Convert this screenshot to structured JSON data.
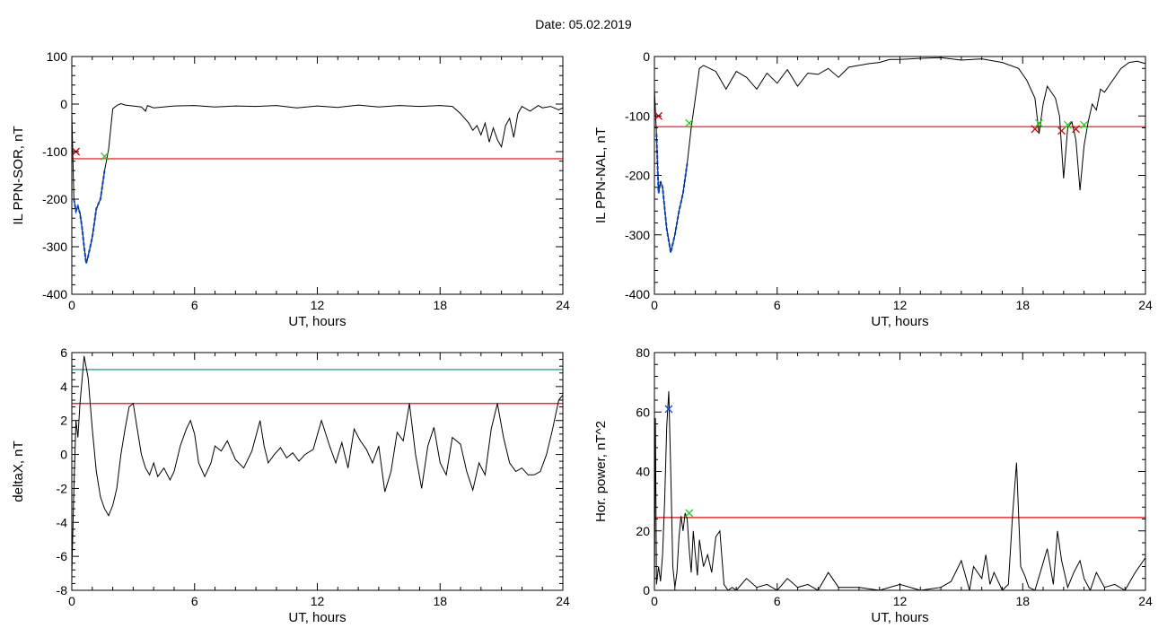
{
  "header": {
    "date_label": "Date:  05.02.2019"
  },
  "colors": {
    "trace": "#000000",
    "threshold": "#ff0000",
    "extra_line": "#008b8b",
    "highlight": "#0044cc",
    "marker_green": "#22cc22",
    "marker_red": "#cc0000"
  },
  "chart_data": [
    {
      "id": "ppn-sor",
      "type": "line",
      "ylabel": "IL PPN-SOR, nT",
      "xlabel": "UT, hours",
      "xlim": [
        0,
        24
      ],
      "ylim": [
        -400,
        100
      ],
      "xticks": [
        0,
        6,
        12,
        18,
        24
      ],
      "yticks": [
        -400,
        -300,
        -200,
        -100,
        0,
        100
      ],
      "threshold": -115,
      "series": [
        {
          "x": [
            0,
            0.1,
            0.2,
            0.3,
            0.4,
            0.5,
            0.6,
            0.7,
            0.8,
            0.9,
            1.0,
            1.1,
            1.2,
            1.4,
            1.6,
            1.8,
            2.0,
            2.2,
            2.4,
            2.6,
            3.0,
            3.4,
            3.6,
            3.7,
            4.0,
            5,
            6,
            7,
            8,
            9,
            10,
            11,
            12,
            13,
            14,
            15,
            16,
            17,
            18,
            18.6,
            19.0,
            19.4,
            19.6,
            19.8,
            20.0,
            20.2,
            20.4,
            20.6,
            20.8,
            21.0,
            21.2,
            21.4,
            21.6,
            21.8,
            22.0,
            22.4,
            22.8,
            23.0,
            23.4,
            23.8,
            24
          ],
          "y": [
            -20,
            -200,
            -225,
            -215,
            -230,
            -260,
            -300,
            -335,
            -320,
            -300,
            -280,
            -250,
            -220,
            -200,
            -140,
            -95,
            -10,
            -3,
            1,
            -2,
            -4,
            -6,
            -15,
            -3,
            -8,
            -4,
            -3,
            -6,
            -4,
            -5,
            -3,
            -8,
            -4,
            -7,
            -2,
            -6,
            -3,
            -5,
            -3,
            -5,
            -20,
            -40,
            -55,
            -45,
            -65,
            -40,
            -80,
            -50,
            -75,
            -90,
            -45,
            -30,
            -70,
            -20,
            -5,
            -15,
            -3,
            -8,
            -5,
            -12,
            -8
          ]
        }
      ],
      "highlight_range": [
        0.1,
        1.7
      ],
      "markers": [
        {
          "x": 0.2,
          "y": -100,
          "color": "red"
        },
        {
          "x": 1.6,
          "y": -110,
          "color": "green"
        }
      ]
    },
    {
      "id": "ppn-nal",
      "type": "line",
      "ylabel": "IL PPN-NAL, nT",
      "xlabel": "UT, hours",
      "xlim": [
        0,
        24
      ],
      "ylim": [
        -400,
        0
      ],
      "xticks": [
        0,
        6,
        12,
        18,
        24
      ],
      "yticks": [
        -400,
        -300,
        -200,
        -100,
        0
      ],
      "threshold": -118,
      "series": [
        {
          "x": [
            0,
            0.1,
            0.2,
            0.3,
            0.4,
            0.6,
            0.8,
            1.0,
            1.2,
            1.4,
            1.6,
            1.8,
            2.0,
            2.2,
            2.4,
            3,
            3.5,
            4,
            4.5,
            5,
            5.5,
            6,
            6.5,
            7,
            7.5,
            8,
            8.5,
            9,
            9.5,
            10,
            10.5,
            11,
            11.5,
            12,
            13,
            14,
            15,
            16,
            17,
            17.8,
            18.2,
            18.6,
            18.8,
            19.0,
            19.2,
            19.6,
            19.8,
            20.0,
            20.2,
            20.4,
            20.6,
            20.8,
            21.0,
            21.2,
            21.4,
            21.6,
            21.8,
            22,
            22.4,
            22.8,
            23.2,
            23.6,
            24
          ],
          "y": [
            -55,
            -130,
            -230,
            -210,
            -220,
            -290,
            -330,
            -300,
            -260,
            -230,
            -180,
            -120,
            -70,
            -20,
            -15,
            -25,
            -55,
            -25,
            -35,
            -55,
            -28,
            -45,
            -22,
            -50,
            -28,
            -30,
            -20,
            -35,
            -18,
            -15,
            -12,
            -10,
            -5,
            -5,
            -3,
            -2,
            -6,
            -4,
            -10,
            -20,
            -40,
            -70,
            -130,
            -80,
            -50,
            -70,
            -100,
            -205,
            -120,
            -110,
            -140,
            -225,
            -150,
            -110,
            -80,
            -90,
            -55,
            -60,
            -40,
            -20,
            -10,
            -8,
            -12
          ]
        }
      ],
      "highlight_range": [
        0.1,
        1.7
      ],
      "markers": [
        {
          "x": 0.2,
          "y": -100,
          "color": "red"
        },
        {
          "x": 1.7,
          "y": -112,
          "color": "green"
        },
        {
          "x": 18.6,
          "y": -122,
          "color": "red"
        },
        {
          "x": 18.8,
          "y": -112,
          "color": "green"
        },
        {
          "x": 19.9,
          "y": -125,
          "color": "red"
        },
        {
          "x": 20.2,
          "y": -115,
          "color": "green"
        },
        {
          "x": 20.6,
          "y": -122,
          "color": "red"
        },
        {
          "x": 21.0,
          "y": -115,
          "color": "green"
        }
      ]
    },
    {
      "id": "deltax",
      "type": "line",
      "ylabel": "deltaX, nT",
      "xlabel": "UT, hours",
      "xlim": [
        0,
        24
      ],
      "ylim": [
        -8,
        6
      ],
      "xticks": [
        0,
        6,
        12,
        18,
        24
      ],
      "yticks": [
        -8,
        -6,
        -4,
        -2,
        0,
        2,
        4,
        6
      ],
      "threshold": 3,
      "extra_line": 5,
      "series": [
        {
          "x": [
            0,
            0.1,
            0.2,
            0.3,
            0.4,
            0.6,
            0.8,
            1.0,
            1.2,
            1.4,
            1.6,
            1.8,
            2.0,
            2.2,
            2.4,
            2.6,
            2.8,
            3.0,
            3.2,
            3.4,
            3.6,
            3.8,
            4.0,
            4.2,
            4.5,
            4.8,
            5.0,
            5.3,
            5.6,
            5.8,
            6.0,
            6.2,
            6.5,
            6.8,
            7.0,
            7.3,
            7.6,
            8.0,
            8.4,
            8.8,
            9.2,
            9.4,
            9.6,
            9.9,
            10.2,
            10.5,
            10.8,
            11.1,
            11.4,
            11.8,
            12.2,
            12.6,
            12.9,
            13.2,
            13.5,
            13.8,
            14.1,
            14.4,
            14.7,
            15.0,
            15.3,
            15.6,
            15.9,
            16.2,
            16.5,
            16.8,
            17.1,
            17.4,
            17.7,
            18.0,
            18.3,
            18.6,
            19.0,
            19.3,
            19.6,
            19.9,
            20.2,
            20.5,
            20.8,
            21.1,
            21.4,
            21.7,
            22.0,
            22.3,
            22.6,
            22.9,
            23.2,
            23.5,
            23.8,
            24
          ],
          "y": [
            -7,
            -2,
            2,
            1,
            3,
            5.8,
            4.5,
            1.5,
            -1,
            -2.5,
            -3.2,
            -3.6,
            -3,
            -2,
            0,
            1.5,
            2.8,
            3,
            1.5,
            0,
            -0.8,
            -1.2,
            -0.5,
            -1.3,
            -0.8,
            -1.5,
            -1,
            0.5,
            1.5,
            2,
            1.2,
            -0.5,
            -1.3,
            -0.5,
            0.5,
            0.2,
            0.8,
            -0.3,
            -0.8,
            0.2,
            2,
            0.5,
            -0.5,
            0,
            0.4,
            -0.2,
            0.1,
            -0.4,
            0,
            0.3,
            2,
            0.5,
            -0.5,
            0.7,
            -0.8,
            1.5,
            0.8,
            0.3,
            -0.5,
            0.5,
            -2.2,
            -1,
            1.3,
            0.8,
            3,
            0,
            -2,
            0.5,
            1.6,
            -0.5,
            -1.2,
            1,
            0.6,
            -1,
            -2.1,
            -0.5,
            -1.2,
            1.5,
            3,
            1,
            -0.5,
            -1,
            -0.8,
            -1.2,
            -1.2,
            -1,
            0,
            1.5,
            3.2,
            3.5
          ]
        }
      ]
    },
    {
      "id": "hor-power",
      "type": "line",
      "ylabel": "Hor. power, nT^2",
      "xlabel": "UT, hours",
      "xlim": [
        0,
        24
      ],
      "ylim": [
        0,
        80
      ],
      "xticks": [
        0,
        6,
        12,
        18,
        24
      ],
      "yticks": [
        0,
        20,
        40,
        60,
        80
      ],
      "threshold": 24.5,
      "series": [
        {
          "x": [
            0,
            0.05,
            0.1,
            0.2,
            0.3,
            0.4,
            0.5,
            0.6,
            0.7,
            0.8,
            0.9,
            1.0,
            1.1,
            1.2,
            1.3,
            1.4,
            1.5,
            1.6,
            1.7,
            1.8,
            1.9,
            2.0,
            2.1,
            2.2,
            2.4,
            2.6,
            2.8,
            3.0,
            3.2,
            3.4,
            3.6,
            3.8,
            4.0,
            4.5,
            5,
            5.5,
            6,
            6.5,
            7,
            7.5,
            8,
            8.5,
            9,
            10,
            11,
            12,
            13,
            14,
            14.5,
            15,
            15.2,
            15.4,
            15.6,
            16,
            16.2,
            16.4,
            16.6,
            17,
            17.3,
            17.5,
            17.7,
            17.9,
            18.1,
            18.3,
            18.6,
            18.9,
            19.2,
            19.5,
            19.7,
            19.9,
            20.2,
            20.5,
            20.8,
            21.0,
            21.3,
            21.6,
            22,
            22.5,
            23,
            23.5,
            24
          ],
          "y": [
            0,
            58,
            2,
            8,
            3,
            12,
            30,
            55,
            67,
            40,
            8,
            1,
            6,
            18,
            25,
            20,
            26,
            24,
            14,
            6,
            20,
            12,
            5,
            17,
            8,
            12,
            6,
            18,
            20,
            2,
            0,
            1,
            0,
            4,
            1,
            2,
            0,
            4,
            1,
            2,
            0,
            6,
            1,
            1,
            0,
            2,
            0,
            1,
            3,
            10,
            5,
            0,
            8,
            4,
            12,
            2,
            6,
            0,
            2,
            25,
            43,
            8,
            5,
            1,
            0,
            7,
            14,
            2,
            20,
            10,
            1,
            6,
            10,
            4,
            0,
            6,
            1,
            2,
            0,
            6,
            11
          ]
        }
      ],
      "markers": [
        {
          "x": 0.7,
          "y": 61,
          "color": "blue"
        },
        {
          "x": 1.7,
          "y": 26,
          "color": "green"
        }
      ]
    }
  ]
}
